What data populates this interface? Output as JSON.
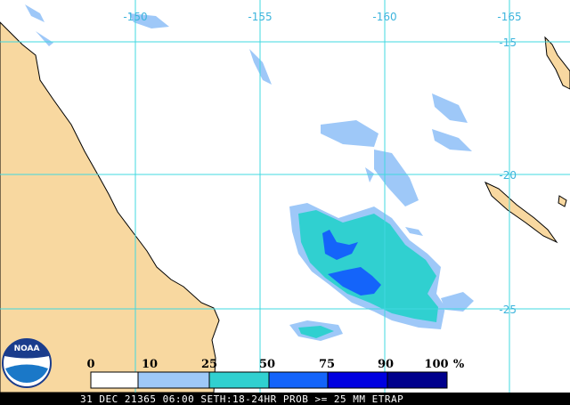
{
  "map": {
    "lon_labels": [
      "-150",
      "-155",
      "-160",
      "-165"
    ],
    "lat_labels": [
      "-15",
      "-20",
      "-25"
    ],
    "legend": {
      "labels": [
        "0",
        "10",
        "25",
        "50",
        "75",
        "90",
        "100"
      ],
      "unit": "%"
    },
    "logo": "NOAA",
    "caption": "31 DEC 21365 06:00 SETH:18-24HR PROB >= 25 MM ETRAP"
  }
}
